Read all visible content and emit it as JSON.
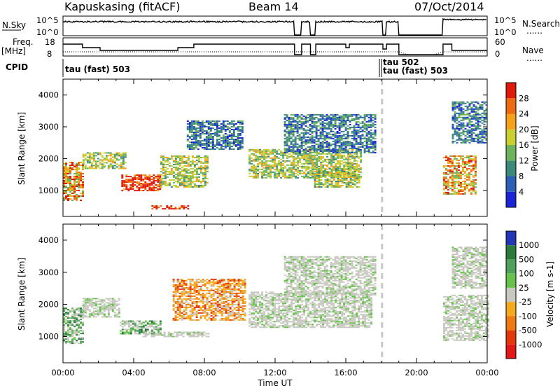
{
  "header": {
    "station": "Kapuskasing (fitACF)",
    "beam": "Beam 14",
    "date": "07/Oct/2014"
  },
  "noise_panel": {
    "left_label": "N.Sky",
    "right_label": "N.Search",
    "right_legend": "......",
    "left_ticks": [
      "10^5",
      "10^0"
    ],
    "right_ticks": [
      "10^5",
      "10^0"
    ]
  },
  "freq_panel": {
    "left_label_1": "Freq.",
    "left_label_2": "[MHz]",
    "right_label": "Nave",
    "right_legend": "......",
    "left_ticks": [
      "18",
      "8"
    ],
    "right_ticks": [
      "60",
      "0"
    ]
  },
  "cpid_panel": {
    "label": "CPID",
    "segments": [
      "tau (fast) 503",
      "tau 502",
      "tau (fast) 503"
    ]
  },
  "chart_data": [
    {
      "type": "heatmap",
      "name": "Power",
      "xlabel": "",
      "ylabel": "Slant Range [km]",
      "x_unit_hours": true,
      "xlim": [
        0,
        24
      ],
      "ylim": [
        180,
        4500
      ],
      "yticks": [
        1000,
        2000,
        3000,
        4000
      ],
      "colorbar": {
        "label": "Power [dB]",
        "ticks": [
          "4",
          "8",
          "12",
          "16",
          "20",
          "24",
          "28"
        ],
        "colors": [
          "#1a24d6",
          "#2c5fb8",
          "#3d8a7a",
          "#6db35b",
          "#c8cf2e",
          "#f3a21a",
          "#ee6a10",
          "#e01a0a"
        ]
      },
      "regions": [
        {
          "x0": 0.0,
          "x1": 1.1,
          "y0": 700,
          "y1": 1900,
          "level": "high"
        },
        {
          "x0": 1.1,
          "x1": 3.5,
          "y0": 1700,
          "y1": 2200,
          "level": "mid"
        },
        {
          "x0": 3.3,
          "x1": 5.5,
          "y0": 1000,
          "y1": 1500,
          "level": "peak"
        },
        {
          "x0": 5.5,
          "x1": 8.2,
          "y0": 1100,
          "y1": 2100,
          "level": "mid"
        },
        {
          "x0": 5.0,
          "x1": 7.1,
          "y0": 430,
          "y1": 530,
          "level": "peak"
        },
        {
          "x0": 7.0,
          "x1": 10.2,
          "y0": 2300,
          "y1": 3200,
          "level": "low"
        },
        {
          "x0": 10.5,
          "x1": 16.8,
          "y0": 1400,
          "y1": 2300,
          "level": "mid"
        },
        {
          "x0": 12.5,
          "x1": 17.7,
          "y0": 2200,
          "y1": 3400,
          "level": "low"
        },
        {
          "x0": 14.2,
          "x1": 16.8,
          "y0": 1100,
          "y1": 1700,
          "level": "mid"
        },
        {
          "x0": 21.5,
          "x1": 23.4,
          "y0": 900,
          "y1": 2100,
          "level": "high"
        },
        {
          "x0": 22.0,
          "x1": 24.0,
          "y0": 2500,
          "y1": 3800,
          "level": "low"
        }
      ]
    },
    {
      "type": "heatmap",
      "name": "Velocity",
      "xlabel": "Time UT",
      "ylabel": "Slant Range [km]",
      "xlim": [
        0,
        24
      ],
      "ylim": [
        180,
        4500
      ],
      "xticks": [
        "00:00",
        "04:00",
        "08:00",
        "12:00",
        "16:00",
        "20:00",
        "00:00"
      ],
      "yticks": [
        1000,
        2000,
        3000,
        4000
      ],
      "colorbar": {
        "label": "Velocity [m s-1]",
        "ticks": [
          "1000",
          "500",
          "100",
          "25",
          "-25",
          "-100",
          "-500",
          "-1000"
        ],
        "colors": [
          "#2436b8",
          "#2a7a3c",
          "#4fa05a",
          "#66c24a",
          "#c8c8c0",
          "#f5a91c",
          "#ee7a10",
          "#e2380c",
          "#e01818"
        ]
      },
      "regions": [
        {
          "x0": 0.0,
          "x1": 1.1,
          "y0": 800,
          "y1": 1900,
          "level": "toward"
        },
        {
          "x0": 1.1,
          "x1": 3.2,
          "y0": 1600,
          "y1": 2200,
          "level": "ground"
        },
        {
          "x0": 3.2,
          "x1": 5.5,
          "y0": 1100,
          "y1": 1500,
          "level": "toward"
        },
        {
          "x0": 6.2,
          "x1": 10.3,
          "y0": 1500,
          "y1": 2800,
          "level": "away"
        },
        {
          "x0": 4.5,
          "x1": 8.2,
          "y0": 1000,
          "y1": 1150,
          "level": "ground"
        },
        {
          "x0": 10.5,
          "x1": 17.5,
          "y0": 1300,
          "y1": 2400,
          "level": "ground"
        },
        {
          "x0": 12.5,
          "x1": 17.7,
          "y0": 2300,
          "y1": 3500,
          "level": "ground"
        },
        {
          "x0": 21.5,
          "x1": 24.0,
          "y0": 900,
          "y1": 2300,
          "level": "ground"
        },
        {
          "x0": 22.0,
          "x1": 24.0,
          "y0": 2500,
          "y1": 3800,
          "level": "ground"
        }
      ]
    }
  ]
}
